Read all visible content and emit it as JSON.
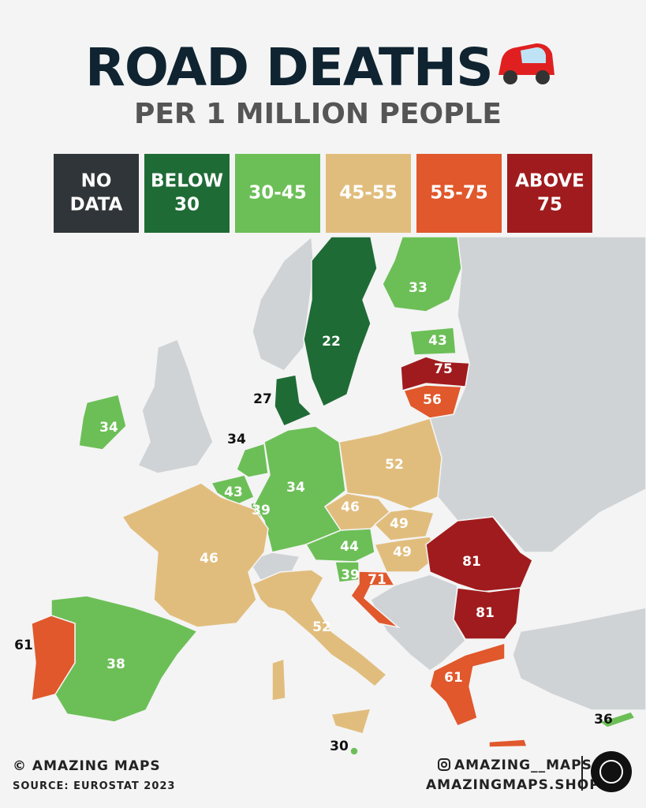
{
  "header": {
    "title": "ROAD DEATHS",
    "subtitle": "PER 1 MILLION PEOPLE"
  },
  "legend": [
    {
      "lines": [
        "NO",
        "DATA"
      ],
      "color": "#2f3538"
    },
    {
      "lines": [
        "BELOW",
        "30"
      ],
      "color": "#1f6b36"
    },
    {
      "lines": [
        "30-45"
      ],
      "color": "#6cbf57"
    },
    {
      "lines": [
        "45-55"
      ],
      "color": "#e1bd7d"
    },
    {
      "lines": [
        "55-75"
      ],
      "color": "#e0582c"
    },
    {
      "lines": [
        "ABOVE",
        "75"
      ],
      "color": "#a01b1d"
    }
  ],
  "regions": [
    {
      "value": 22,
      "color": "#1f6b36"
    },
    {
      "value": 33,
      "color": "#6cbf57"
    },
    {
      "value": 43,
      "color": "#6cbf57"
    },
    {
      "value": 75,
      "color": "#a01b1d"
    },
    {
      "value": 56,
      "color": "#e0582c"
    },
    {
      "value": 27,
      "color": "#1f6b36"
    },
    {
      "value": 34,
      "color": "#6cbf57"
    },
    {
      "value": 34,
      "color": "#6cbf57"
    },
    {
      "value": 43,
      "color": "#6cbf57"
    },
    {
      "value": 39,
      "color": "#6cbf57"
    },
    {
      "value": 34,
      "color": "#6cbf57"
    },
    {
      "value": 52,
      "color": "#e1bd7d"
    },
    {
      "value": 46,
      "color": "#e1bd7d"
    },
    {
      "value": 49,
      "color": "#e1bd7d"
    },
    {
      "value": 44,
      "color": "#6cbf57"
    },
    {
      "value": 49,
      "color": "#e1bd7d"
    },
    {
      "value": 39,
      "color": "#6cbf57"
    },
    {
      "value": 71,
      "color": "#e0582c"
    },
    {
      "value": 81,
      "color": "#a01b1d"
    },
    {
      "value": 81,
      "color": "#a01b1d"
    },
    {
      "value": 46,
      "color": "#e1bd7d"
    },
    {
      "value": 52,
      "color": "#e1bd7d"
    },
    {
      "value": 38,
      "color": "#6cbf57"
    },
    {
      "value": 61,
      "color": "#e0582c"
    },
    {
      "value": 61,
      "color": "#e0582c"
    },
    {
      "value": 30,
      "color": "#6cbf57"
    },
    {
      "value": 36,
      "color": "#6cbf57"
    }
  ],
  "footer": {
    "copyright": "© AMAZING MAPS",
    "source": "SOURCE: EUROSTAT 2023",
    "instagram": "AMAZING__MAPS",
    "website": "AMAZINGMAPS.SHOP"
  }
}
